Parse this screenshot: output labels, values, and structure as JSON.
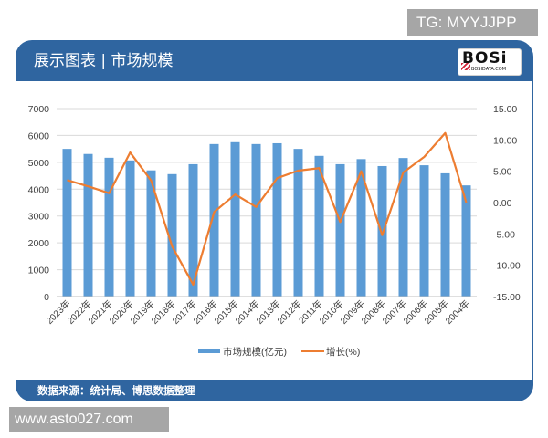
{
  "overlays": {
    "tg_label": "TG: MYYJJPP",
    "url_label": "www.asto027.com"
  },
  "panel": {
    "title": "展示图表 | 市场规模",
    "logo": {
      "main": "BOSi",
      "sub": "BOSIDATA.COM"
    },
    "footer": "数据来源：统计局、博思数据整理"
  },
  "colors": {
    "header_bg": "#2f65a0",
    "bar": "#5b9bd5",
    "line": "#ed7d31",
    "grid": "#d9d9d9",
    "axis_text": "#404040"
  },
  "chart_data": {
    "type": "bar+line",
    "title": "展示图表 | 市场规模",
    "categories": [
      "2023年",
      "2022年",
      "2021年",
      "2020年",
      "2019年",
      "2018年",
      "2017年",
      "2016年",
      "2015年",
      "2014年",
      "2013年",
      "2012年",
      "2011年",
      "2010年",
      "2009年",
      "2008年",
      "2007年",
      "2006年",
      "2005年",
      "2004年"
    ],
    "series": [
      {
        "name": "市场规模(亿元)",
        "type": "bar",
        "axis": "left",
        "values": [
          5500,
          5310,
          5170,
          5070,
          4700,
          4560,
          4930,
          5680,
          5750,
          5680,
          5710,
          5500,
          5240,
          4930,
          5120,
          4860,
          5160,
          4890,
          4590,
          4140
        ]
      },
      {
        "name": "增长(%)",
        "type": "line",
        "axis": "right",
        "values": [
          3.6,
          2.6,
          1.5,
          8.0,
          3.5,
          -7.0,
          -13.1,
          -1.5,
          1.3,
          -0.7,
          3.9,
          5.1,
          5.5,
          -3.1,
          5.0,
          -5.2,
          4.8,
          7.3,
          11.1,
          0.0
        ]
      }
    ],
    "left_axis": {
      "ylim": [
        0,
        7000
      ],
      "ticks": [
        "0",
        "1000",
        "2000",
        "3000",
        "4000",
        "5000",
        "6000",
        "7000"
      ]
    },
    "right_axis": {
      "ylim": [
        -15,
        15
      ],
      "ticks": [
        "-15.00",
        "-10.00",
        "-5.00",
        "0.00",
        "5.00",
        "10.00",
        "15.00"
      ]
    },
    "xlabel": "",
    "ylabel": "",
    "grid": true,
    "legend_position": "bottom",
    "legend": [
      "市场规模(亿元)",
      "增长(%)"
    ]
  }
}
